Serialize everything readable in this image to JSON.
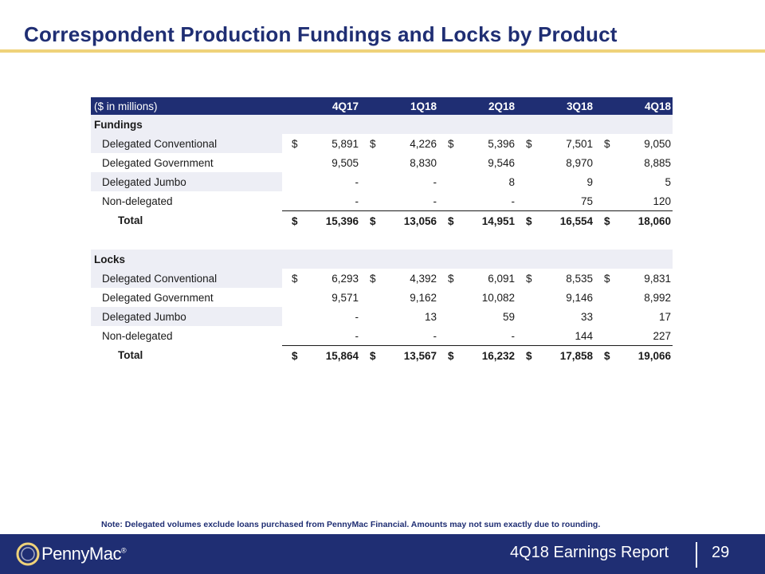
{
  "title": "Correspondent Production Fundings and Locks by Product",
  "table": {
    "caption": "($ in millions)",
    "quarters": [
      "4Q17",
      "1Q18",
      "2Q18",
      "3Q18",
      "4Q18"
    ],
    "fundings": {
      "label": "Fundings",
      "rows": [
        {
          "label": "Delegated Conventional",
          "dollar": true,
          "values": [
            "5,891",
            "4,226",
            "5,396",
            "7,501",
            "9,050"
          ]
        },
        {
          "label": "Delegated Government",
          "dollar": false,
          "values": [
            "9,505",
            "8,830",
            "9,546",
            "8,970",
            "8,885"
          ]
        },
        {
          "label": "Delegated Jumbo",
          "dollar": false,
          "values": [
            "-",
            "-",
            "8",
            "9",
            "5"
          ]
        },
        {
          "label": "Non-delegated",
          "dollar": false,
          "values": [
            "-",
            "-",
            "-",
            "75",
            "120"
          ]
        }
      ],
      "total": {
        "label": "Total",
        "dollar": true,
        "values": [
          "15,396",
          "13,056",
          "14,951",
          "16,554",
          "18,060"
        ]
      }
    },
    "locks": {
      "label": "Locks",
      "rows": [
        {
          "label": "Delegated Conventional",
          "dollar": true,
          "values": [
            "6,293",
            "4,392",
            "6,091",
            "8,535",
            "9,831"
          ]
        },
        {
          "label": "Delegated Government",
          "dollar": false,
          "values": [
            "9,571",
            "9,162",
            "10,082",
            "9,146",
            "8,992"
          ]
        },
        {
          "label": "Delegated Jumbo",
          "dollar": false,
          "values": [
            "-",
            "13",
            "59",
            "33",
            "17"
          ]
        },
        {
          "label": "Non-delegated",
          "dollar": false,
          "values": [
            "-",
            "-",
            "-",
            "144",
            "227"
          ]
        }
      ],
      "total": {
        "label": "Total",
        "dollar": true,
        "values": [
          "15,864",
          "13,567",
          "16,232",
          "17,858",
          "19,066"
        ]
      }
    },
    "currency_symbol": "$"
  },
  "note": "Note: Delegated volumes exclude loans purchased from PennyMac Financial. Amounts may not sum exactly due to rounding.",
  "footer": {
    "logo_text": "PennyMac",
    "logo_mark": "®",
    "report": "4Q18 Earnings Report",
    "page": "29"
  },
  "colors": {
    "navy": "#1f2e73",
    "gold": "#efd27a",
    "row_shade": "#edeef5"
  }
}
